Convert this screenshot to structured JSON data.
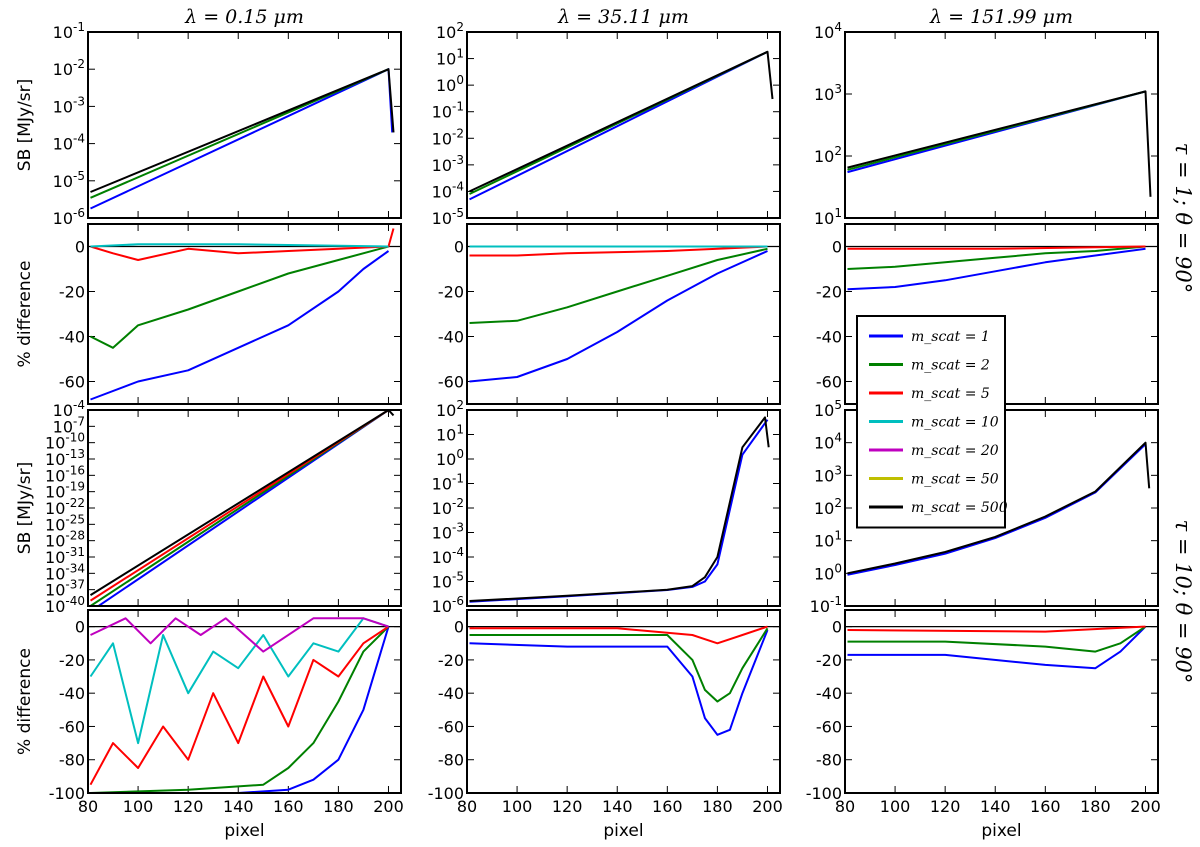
{
  "figure": {
    "column_titles": [
      "λ = 0.15 μm",
      "λ = 35.11 μm",
      "λ = 151.99 μm"
    ],
    "row_labels": [
      "τ = 1; θ = 90°",
      "τ = 10; θ = 90°"
    ],
    "sb_ylabel": "SB [MJy/sr]",
    "diff_ylabel": "% difference",
    "xlabel": "pixel",
    "x_ticks": [
      "80",
      "100",
      "120",
      "140",
      "160",
      "180",
      "200"
    ],
    "diff_ticks": [
      "0",
      "-20",
      "-40",
      "-60",
      "-80",
      "-100"
    ],
    "colors": {
      "m1": "#0000ff",
      "m2": "#008000",
      "m5": "#ff0000",
      "m10": "#00bfbf",
      "m20": "#bf00bf",
      "m50": "#bfbf00",
      "m500": "#000000"
    },
    "legend": {
      "entries": [
        {
          "label": "m_scat = 1",
          "color": "#0000ff"
        },
        {
          "label": "m_scat = 2",
          "color": "#008000"
        },
        {
          "label": "m_scat = 5",
          "color": "#ff0000"
        },
        {
          "label": "m_scat = 10",
          "color": "#00bfbf"
        },
        {
          "label": "m_scat = 20",
          "color": "#bf00bf"
        },
        {
          "label": "m_scat = 50",
          "color": "#bfbf00"
        },
        {
          "label": "m_scat = 500",
          "color": "#000000"
        }
      ]
    }
  },
  "chart_data": [
    {
      "type": "line",
      "row": 0,
      "col": 0,
      "kind": "sb",
      "title": "λ = 0.15 μm",
      "xlim": [
        80,
        205
      ],
      "y_ticks": [
        "10^-1",
        "10^-2",
        "10^-3",
        "10^-4",
        "10^-5",
        "10^-6"
      ],
      "series": [
        {
          "name": "m_scat = 1",
          "x": [
            81,
            200,
            201.5
          ],
          "y": [
            1.8e-06,
            0.01,
            0.0002
          ]
        },
        {
          "name": "m_scat = 2",
          "x": [
            81,
            200
          ],
          "y": [
            3.5e-06,
            0.01
          ]
        },
        {
          "name": "m_scat = 500",
          "x": [
            81,
            200,
            202
          ],
          "y": [
            5e-06,
            0.01,
            0.0002
          ]
        }
      ]
    },
    {
      "type": "line",
      "row": 0,
      "col": 1,
      "kind": "sb",
      "title": "λ = 35.11 μm",
      "xlim": [
        80,
        205
      ],
      "y_ticks": [
        "10^2",
        "10^1",
        "10^0",
        "10^-1",
        "10^-2",
        "10^-3",
        "10^-4",
        "10^-5"
      ],
      "series": [
        {
          "name": "m_scat = 1",
          "x": [
            81,
            200
          ],
          "y": [
            5e-05,
            18
          ]
        },
        {
          "name": "m_scat = 2",
          "x": [
            81,
            200
          ],
          "y": [
            8e-05,
            18
          ]
        },
        {
          "name": "m_scat = 500",
          "x": [
            81,
            200,
            202
          ],
          "y": [
            0.0001,
            18,
            0.3
          ]
        }
      ]
    },
    {
      "type": "line",
      "row": 0,
      "col": 2,
      "kind": "sb",
      "title": "λ = 151.99 μm",
      "xlim": [
        80,
        205
      ],
      "y_ticks": [
        "10^4",
        "10^3",
        "10^2",
        "10^1"
      ],
      "series": [
        {
          "name": "m_scat = 1",
          "x": [
            81,
            200
          ],
          "y": [
            55,
            1100
          ]
        },
        {
          "name": "m_scat = 2",
          "x": [
            81,
            200
          ],
          "y": [
            60,
            1100
          ]
        },
        {
          "name": "m_scat = 500",
          "x": [
            81,
            200,
            202
          ],
          "y": [
            65,
            1100,
            22
          ]
        }
      ]
    },
    {
      "type": "line",
      "row": 1,
      "col": 0,
      "kind": "diff",
      "xlim": [
        80,
        205
      ],
      "ylim": [
        -70,
        10
      ],
      "series": [
        {
          "name": "m_scat = 1",
          "x": [
            81,
            100,
            120,
            140,
            160,
            180,
            190,
            200
          ],
          "y": [
            -68,
            -60,
            -55,
            -45,
            -35,
            -20,
            -10,
            -2
          ]
        },
        {
          "name": "m_scat = 2",
          "x": [
            81,
            90,
            100,
            120,
            140,
            160,
            180,
            200
          ],
          "y": [
            -40,
            -45,
            -35,
            -28,
            -20,
            -12,
            -6,
            0
          ]
        },
        {
          "name": "m_scat = 5",
          "x": [
            81,
            90,
            100,
            120,
            140,
            160,
            180,
            200,
            202
          ],
          "y": [
            0,
            -3,
            -6,
            -1,
            -3,
            -2,
            -1,
            0,
            8
          ]
        },
        {
          "name": "m_scat = 10",
          "x": [
            81,
            100,
            140,
            200
          ],
          "y": [
            0,
            1,
            1,
            0
          ]
        }
      ]
    },
    {
      "type": "line",
      "row": 1,
      "col": 1,
      "kind": "diff",
      "xlim": [
        80,
        205
      ],
      "ylim": [
        -70,
        10
      ],
      "series": [
        {
          "name": "m_scat = 1",
          "x": [
            81,
            100,
            120,
            140,
            160,
            180,
            200
          ],
          "y": [
            -60,
            -58,
            -50,
            -38,
            -24,
            -12,
            -2
          ]
        },
        {
          "name": "m_scat = 2",
          "x": [
            81,
            100,
            120,
            140,
            160,
            180,
            200
          ],
          "y": [
            -34,
            -33,
            -27,
            -20,
            -13,
            -6,
            -1
          ]
        },
        {
          "name": "m_scat = 5",
          "x": [
            81,
            100,
            120,
            160,
            200
          ],
          "y": [
            -4,
            -4,
            -3,
            -2,
            0
          ]
        },
        {
          "name": "m_scat = 10",
          "x": [
            81,
            140,
            200
          ],
          "y": [
            0,
            0,
            0
          ]
        }
      ]
    },
    {
      "type": "line",
      "row": 1,
      "col": 2,
      "kind": "diff",
      "xlim": [
        80,
        205
      ],
      "ylim": [
        -70,
        10
      ],
      "series": [
        {
          "name": "m_scat = 1",
          "x": [
            81,
            100,
            120,
            140,
            160,
            180,
            200
          ],
          "y": [
            -19,
            -18,
            -15,
            -11,
            -7,
            -4,
            -1
          ]
        },
        {
          "name": "m_scat = 2",
          "x": [
            81,
            100,
            120,
            140,
            160,
            180,
            200
          ],
          "y": [
            -10,
            -9,
            -7,
            -5,
            -3,
            -2,
            0
          ]
        },
        {
          "name": "m_scat = 5",
          "x": [
            81,
            140,
            200
          ],
          "y": [
            -1,
            -1,
            0
          ]
        }
      ]
    },
    {
      "type": "line",
      "row": 2,
      "col": 0,
      "kind": "sb",
      "xlim": [
        80,
        205
      ],
      "y_ticks": [
        "10^-4",
        "10^-7",
        "10^-10",
        "10^-13",
        "10^-16",
        "10^-19",
        "10^-22",
        "10^-25",
        "10^-28",
        "10^-31",
        "10^-34",
        "10^-37",
        "10^-40"
      ],
      "series": [
        {
          "name": "m_scat = 1",
          "x": [
            81,
            200
          ],
          "y": [
            1e-41,
            0.0001
          ]
        },
        {
          "name": "m_scat = 2",
          "x": [
            81,
            200
          ],
          "y": [
            1e-40,
            0.0001
          ]
        },
        {
          "name": "m_scat = 5",
          "x": [
            81,
            200
          ],
          "y": [
            1e-39,
            0.0001
          ]
        },
        {
          "name": "m_scat = 500",
          "x": [
            81,
            200,
            202
          ],
          "y": [
            1e-38,
            0.0001,
            1e-05
          ]
        }
      ]
    },
    {
      "type": "line",
      "row": 2,
      "col": 1,
      "kind": "sb",
      "xlim": [
        80,
        205
      ],
      "y_ticks": [
        "10^2",
        "10^1",
        "10^0",
        "10^-1",
        "10^-2",
        "10^-3",
        "10^-4",
        "10^-5",
        "10^-6"
      ],
      "series": [
        {
          "name": "m_scat = 1",
          "x": [
            81,
            120,
            160,
            170,
            175,
            180,
            190,
            200
          ],
          "y": [
            1.5e-06,
            2.5e-06,
            4.5e-06,
            6e-06,
            1e-05,
            5e-05,
            1.5,
            40
          ]
        },
        {
          "name": "m_scat = 500",
          "x": [
            81,
            120,
            160,
            170,
            175,
            180,
            190,
            199,
            200.5
          ],
          "y": [
            1.6e-06,
            2.6e-06,
            4.6e-06,
            6.5e-06,
            1.5e-05,
            0.0001,
            3,
            50,
            3
          ]
        }
      ]
    },
    {
      "type": "line",
      "row": 2,
      "col": 2,
      "kind": "sb",
      "xlim": [
        80,
        205
      ],
      "y_ticks": [
        "10^5",
        "10^4",
        "10^3",
        "10^2",
        "10^1",
        "10^0",
        "10^-1"
      ],
      "series": [
        {
          "name": "m_scat = 1",
          "x": [
            81,
            100,
            120,
            140,
            160,
            180,
            200
          ],
          "y": [
            0.9,
            1.8,
            4,
            12,
            50,
            300,
            9000
          ]
        },
        {
          "name": "m_scat = 500",
          "x": [
            81,
            100,
            120,
            140,
            160,
            180,
            200,
            201.5
          ],
          "y": [
            1.0,
            2.0,
            4.5,
            13,
            55,
            320,
            10000,
            400
          ]
        }
      ]
    },
    {
      "type": "line",
      "row": 3,
      "col": 0,
      "kind": "diff",
      "xlim": [
        80,
        205
      ],
      "ylim": [
        -100,
        10
      ],
      "series": [
        {
          "name": "m_scat = 1",
          "x": [
            81,
            140,
            160,
            170,
            180,
            190,
            200
          ],
          "y": [
            -100,
            -100,
            -98,
            -92,
            -80,
            -50,
            0
          ]
        },
        {
          "name": "m_scat = 2",
          "x": [
            81,
            120,
            150,
            160,
            170,
            180,
            190,
            200
          ],
          "y": [
            -100,
            -98,
            -95,
            -85,
            -70,
            -45,
            -15,
            0
          ]
        },
        {
          "name": "m_scat = 5",
          "x": [
            81,
            90,
            100,
            110,
            120,
            130,
            140,
            150,
            160,
            170,
            180,
            190,
            200
          ],
          "y": [
            -95,
            -70,
            -85,
            -60,
            -80,
            -40,
            -70,
            -30,
            -60,
            -20,
            -30,
            -10,
            0
          ]
        },
        {
          "name": "m_scat = 10",
          "x": [
            81,
            90,
            100,
            110,
            120,
            130,
            140,
            150,
            160,
            170,
            180,
            190,
            200
          ],
          "y": [
            -30,
            -10,
            -70,
            -5,
            -40,
            -15,
            -25,
            -5,
            -30,
            -10,
            -15,
            5,
            0
          ]
        },
        {
          "name": "m_scat = 20",
          "x": [
            81,
            95,
            105,
            115,
            125,
            135,
            150,
            170,
            190,
            200
          ],
          "y": [
            -5,
            5,
            -10,
            5,
            -5,
            5,
            -15,
            5,
            5,
            0
          ]
        }
      ]
    },
    {
      "type": "line",
      "row": 3,
      "col": 1,
      "kind": "diff",
      "xlim": [
        80,
        205
      ],
      "ylim": [
        -100,
        10
      ],
      "series": [
        {
          "name": "m_scat = 1",
          "x": [
            81,
            120,
            160,
            170,
            175,
            180,
            185,
            190,
            200
          ],
          "y": [
            -10,
            -12,
            -12,
            -30,
            -55,
            -65,
            -62,
            -40,
            -2
          ]
        },
        {
          "name": "m_scat = 2",
          "x": [
            81,
            120,
            160,
            170,
            175,
            180,
            185,
            190,
            200
          ],
          "y": [
            -5,
            -5,
            -5,
            -20,
            -38,
            -45,
            -40,
            -25,
            -1
          ]
        },
        {
          "name": "m_scat = 5",
          "x": [
            81,
            140,
            170,
            180,
            190,
            200
          ],
          "y": [
            -1,
            -1,
            -5,
            -10,
            -5,
            0
          ]
        }
      ]
    },
    {
      "type": "line",
      "row": 3,
      "col": 2,
      "kind": "diff",
      "xlim": [
        80,
        205
      ],
      "ylim": [
        -100,
        10
      ],
      "series": [
        {
          "name": "m_scat = 1",
          "x": [
            81,
            120,
            160,
            180,
            190,
            200
          ],
          "y": [
            -17,
            -17,
            -23,
            -25,
            -15,
            0
          ]
        },
        {
          "name": "m_scat = 2",
          "x": [
            81,
            120,
            160,
            180,
            190,
            200
          ],
          "y": [
            -9,
            -9,
            -12,
            -15,
            -10,
            0
          ]
        },
        {
          "name": "m_scat = 5",
          "x": [
            81,
            160,
            200
          ],
          "y": [
            -2,
            -3,
            0
          ]
        }
      ]
    }
  ]
}
